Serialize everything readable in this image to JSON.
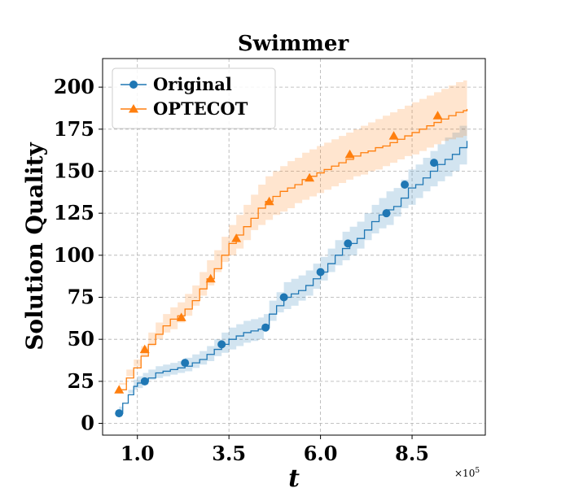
{
  "chart_data": {
    "type": "line",
    "title": "Swimmer",
    "xlabel": "t",
    "ylabel": "Solution Quality",
    "x_multiplier_label": "×10",
    "x_multiplier_exp": "5",
    "xlim": [
      0.05,
      10.5
    ],
    "ylim": [
      -7,
      217
    ],
    "xticks": [
      1.0,
      3.5,
      6.0,
      8.5
    ],
    "xtick_labels": [
      "1.0",
      "3.5",
      "6.0",
      "8.5"
    ],
    "yticks": [
      0,
      25,
      50,
      75,
      100,
      125,
      150,
      175,
      200
    ],
    "ytick_labels": [
      "0",
      "25",
      "50",
      "75",
      "100",
      "125",
      "150",
      "175",
      "200"
    ],
    "grid": true,
    "legend_position": "upper-left",
    "series": [
      {
        "name": "Original",
        "color": "#1f77b4",
        "marker": "circle",
        "x": [
          0.5,
          0.6,
          0.75,
          0.9,
          1.0,
          1.15,
          1.3,
          1.5,
          1.7,
          1.9,
          2.1,
          2.3,
          2.5,
          2.7,
          2.9,
          3.1,
          3.3,
          3.5,
          3.7,
          3.9,
          4.1,
          4.3,
          4.45,
          4.6,
          4.8,
          5.0,
          5.2,
          5.4,
          5.6,
          5.8,
          6.0,
          6.2,
          6.4,
          6.6,
          6.8,
          7.0,
          7.2,
          7.4,
          7.6,
          7.8,
          8.0,
          8.2,
          8.4,
          8.6,
          8.8,
          9.0,
          9.2,
          9.4,
          9.6,
          9.8,
          10.0
        ],
        "y": [
          6,
          12,
          17,
          22,
          24,
          25,
          27,
          30,
          31,
          32,
          33,
          34,
          36,
          38,
          41,
          44,
          47,
          50,
          52,
          54,
          55,
          56,
          57,
          65,
          70,
          75,
          77,
          79,
          82,
          86,
          90,
          95,
          100,
          104,
          107,
          110,
          115,
          120,
          124,
          127,
          129,
          134,
          140,
          142,
          146,
          150,
          154,
          157,
          160,
          164,
          168
        ],
        "band_low": [
          5,
          10,
          14,
          18,
          20,
          21,
          23,
          26,
          27,
          28,
          29,
          30,
          31,
          33,
          35,
          37,
          40,
          42,
          44,
          46,
          48,
          49,
          50,
          56,
          61,
          66,
          68,
          70,
          73,
          76,
          80,
          85,
          90,
          94,
          97,
          100,
          104,
          109,
          113,
          116,
          118,
          123,
          128,
          130,
          134,
          138,
          141,
          144,
          147,
          150,
          154
        ],
        "band_high": [
          7,
          14,
          20,
          26,
          28,
          30,
          32,
          34,
          35,
          36,
          37,
          39,
          41,
          43,
          46,
          50,
          54,
          57,
          59,
          61,
          62,
          63,
          65,
          73,
          78,
          84,
          86,
          88,
          91,
          95,
          99,
          104,
          109,
          114,
          117,
          120,
          125,
          130,
          134,
          138,
          140,
          145,
          151,
          154,
          158,
          162,
          166,
          170,
          173,
          177,
          182
        ],
        "markers_x": [
          0.5,
          1.2,
          2.3,
          3.3,
          4.5,
          5.0,
          6.0,
          6.75,
          7.8,
          8.3,
          9.1
        ],
        "markers_y": [
          6,
          25,
          36,
          47,
          57,
          75,
          90,
          107,
          125,
          142,
          155
        ]
      },
      {
        "name": "OPTECOT",
        "color": "#ff7f0e",
        "marker": "triangle",
        "x": [
          0.5,
          0.7,
          0.9,
          1.1,
          1.3,
          1.5,
          1.7,
          1.9,
          2.1,
          2.3,
          2.5,
          2.7,
          2.9,
          3.1,
          3.3,
          3.5,
          3.7,
          3.9,
          4.1,
          4.3,
          4.5,
          4.7,
          4.9,
          5.1,
          5.3,
          5.5,
          5.7,
          5.9,
          6.1,
          6.3,
          6.5,
          6.7,
          6.9,
          7.1,
          7.3,
          7.5,
          7.7,
          7.9,
          8.1,
          8.3,
          8.5,
          8.7,
          8.9,
          9.1,
          9.3,
          9.5,
          9.7,
          9.9,
          10.0
        ],
        "y": [
          20,
          27,
          33,
          40,
          47,
          53,
          58,
          62,
          64,
          68,
          73,
          80,
          86,
          92,
          100,
          107,
          112,
          117,
          122,
          128,
          132,
          135,
          138,
          140,
          142,
          145,
          147,
          149,
          151,
          153,
          155,
          157,
          159,
          161,
          162,
          164,
          165,
          167,
          169,
          171,
          173,
          175,
          177,
          179,
          181,
          183,
          185,
          186,
          187
        ],
        "band_low": [
          17,
          23,
          28,
          34,
          40,
          46,
          50,
          54,
          56,
          60,
          64,
          70,
          76,
          82,
          90,
          96,
          100,
          104,
          109,
          115,
          118,
          121,
          124,
          126,
          128,
          131,
          133,
          135,
          137,
          139,
          141,
          143,
          145,
          147,
          148,
          150,
          151,
          153,
          155,
          157,
          159,
          160,
          162,
          164,
          166,
          168,
          169,
          170,
          171
        ],
        "band_high": [
          24,
          32,
          38,
          46,
          54,
          60,
          65,
          69,
          72,
          77,
          82,
          90,
          97,
          103,
          111,
          118,
          124,
          130,
          136,
          142,
          147,
          150,
          153,
          156,
          158,
          161,
          163,
          165,
          167,
          169,
          171,
          173,
          175,
          177,
          179,
          181,
          183,
          185,
          187,
          189,
          191,
          193,
          195,
          197,
          199,
          201,
          203,
          204,
          205
        ],
        "markers_x": [
          0.5,
          1.2,
          2.2,
          3.0,
          3.7,
          4.6,
          5.7,
          6.8,
          8.0,
          9.2
        ],
        "markers_y": [
          20,
          44,
          63,
          86,
          110,
          132,
          146,
          160,
          171,
          183
        ]
      }
    ]
  }
}
